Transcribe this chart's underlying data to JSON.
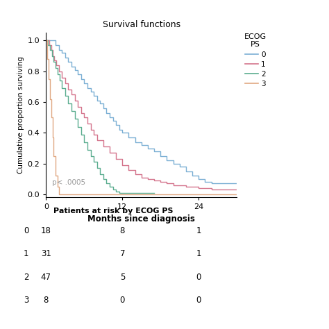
{
  "title": "Survival functions",
  "xlabel": "Months since diagnosis",
  "ylabel": "Cumulative proportion surviving",
  "xlim": [
    0,
    30
  ],
  "ylim": [
    -0.02,
    1.05
  ],
  "xticks": [
    0,
    12,
    24
  ],
  "yticks": [
    0.0,
    0.2,
    0.4,
    0.6,
    0.8,
    1.0
  ],
  "pvalue_text": "p< .0005",
  "legend_title": "ECOG\nPS",
  "legend_labels": [
    "0",
    "1",
    "2",
    "3"
  ],
  "colors": [
    "#7BAFD4",
    "#D4748C",
    "#5BAD8F",
    "#E0A882"
  ],
  "risk_table_title": "Patients at risk by ECOG PS",
  "risk_table_times": [
    0,
    12,
    24
  ],
  "risk_table_rows": [
    {
      "label": "0",
      "values": [
        18,
        8,
        1
      ]
    },
    {
      "label": "1",
      "values": [
        31,
        7,
        1
      ]
    },
    {
      "label": "2",
      "values": [
        47,
        5,
        0
      ]
    },
    {
      "label": "3",
      "values": [
        8,
        0,
        0
      ]
    }
  ],
  "curves": {
    "0": {
      "times": [
        0,
        1.0,
        1.5,
        2.0,
        2.5,
        3.0,
        3.5,
        4.0,
        4.5,
        5.0,
        5.5,
        6.0,
        6.5,
        7.0,
        7.5,
        8.0,
        8.5,
        9.0,
        9.5,
        10.0,
        10.5,
        11.0,
        11.5,
        12.0,
        13.0,
        14.0,
        15.0,
        16.0,
        17.0,
        18.0,
        19.0,
        20.0,
        21.0,
        22.0,
        23.0,
        24.0,
        25.0,
        26.0,
        27.0,
        28.0,
        29.0,
        30.0
      ],
      "survival": [
        1.0,
        1.0,
        0.97,
        0.94,
        0.92,
        0.89,
        0.86,
        0.83,
        0.81,
        0.78,
        0.75,
        0.72,
        0.69,
        0.67,
        0.64,
        0.61,
        0.59,
        0.56,
        0.53,
        0.5,
        0.48,
        0.45,
        0.42,
        0.4,
        0.37,
        0.34,
        0.32,
        0.3,
        0.28,
        0.25,
        0.22,
        0.2,
        0.18,
        0.15,
        0.12,
        0.1,
        0.08,
        0.07,
        0.07,
        0.07,
        0.07,
        0.07
      ]
    },
    "1": {
      "times": [
        0,
        0.5,
        0.8,
        1.0,
        1.3,
        1.6,
        2.0,
        2.5,
        3.0,
        3.5,
        4.0,
        4.5,
        5.0,
        5.5,
        6.0,
        6.5,
        7.0,
        7.5,
        8.0,
        9.0,
        10.0,
        11.0,
        12.0,
        13.0,
        14.0,
        15.0,
        16.0,
        17.0,
        18.0,
        19.0,
        20.0,
        21.0,
        22.0,
        23.0,
        24.0,
        25.0,
        26.0,
        27.0,
        28.0,
        29.0,
        30.0
      ],
      "survival": [
        1.0,
        0.97,
        0.94,
        0.9,
        0.87,
        0.84,
        0.8,
        0.76,
        0.72,
        0.68,
        0.65,
        0.61,
        0.57,
        0.53,
        0.5,
        0.46,
        0.42,
        0.39,
        0.35,
        0.31,
        0.27,
        0.23,
        0.19,
        0.16,
        0.13,
        0.11,
        0.1,
        0.09,
        0.08,
        0.07,
        0.06,
        0.06,
        0.05,
        0.05,
        0.04,
        0.04,
        0.03,
        0.03,
        0.03,
        0.03,
        0.03
      ]
    },
    "2": {
      "times": [
        0,
        0.3,
        0.6,
        0.9,
        1.2,
        1.5,
        1.8,
        2.1,
        2.5,
        3.0,
        3.5,
        4.0,
        4.5,
        5.0,
        5.5,
        6.0,
        6.5,
        7.0,
        7.5,
        8.0,
        8.5,
        9.0,
        9.5,
        10.0,
        10.5,
        11.0,
        11.5,
        12.0,
        13.0,
        14.0,
        15.0,
        16.0,
        17.0
      ],
      "survival": [
        1.0,
        0.97,
        0.94,
        0.9,
        0.86,
        0.82,
        0.78,
        0.74,
        0.69,
        0.64,
        0.59,
        0.54,
        0.49,
        0.44,
        0.39,
        0.34,
        0.29,
        0.25,
        0.21,
        0.17,
        0.13,
        0.1,
        0.07,
        0.05,
        0.03,
        0.02,
        0.01,
        0.01,
        0.01,
        0.01,
        0.01,
        0.01,
        0.01
      ]
    },
    "3": {
      "times": [
        0,
        0.2,
        0.4,
        0.6,
        0.8,
        1.0,
        1.2,
        1.5,
        1.8,
        2.0,
        2.5,
        30.0
      ],
      "survival": [
        1.0,
        0.88,
        0.75,
        0.62,
        0.5,
        0.37,
        0.25,
        0.12,
        0.05,
        0.0,
        0.0,
        0.0
      ]
    }
  }
}
